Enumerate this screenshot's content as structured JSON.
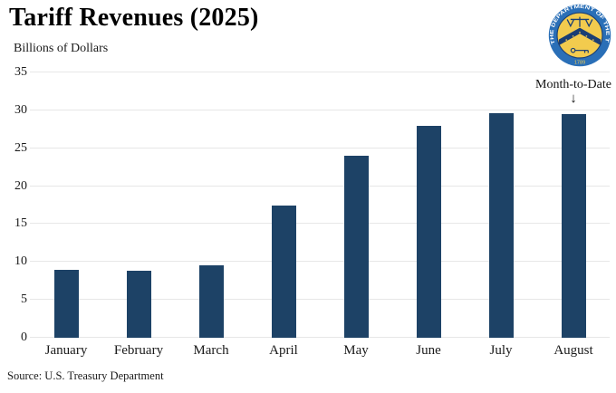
{
  "header": {
    "title": "Tariff Revenues (2025)",
    "subtitle": "Billions of Dollars"
  },
  "logo": {
    "ring_text": "THE DEPARTMENT OF THE TREASURY",
    "year_text": "1789",
    "colors": {
      "ring": "#2a6fb7",
      "disc": "#f2cb4e",
      "emblem": "#1a3e74"
    }
  },
  "chart_data": {
    "type": "bar",
    "title": "Tariff Revenues (2025)",
    "ylabel": "Billions of Dollars",
    "categories": [
      "January",
      "February",
      "March",
      "April",
      "May",
      "June",
      "July",
      "August"
    ],
    "values": [
      9.0,
      8.9,
      9.6,
      17.4,
      24.0,
      28.0,
      29.6,
      29.5
    ],
    "ylim": [
      0,
      35
    ],
    "yticks": [
      0,
      5,
      10,
      15,
      20,
      25,
      30,
      35
    ],
    "grid": true,
    "bar_color": "#1d4266",
    "gridline_color": "#e7e7e7",
    "annotation": {
      "text": "Month-to-Date",
      "arrow": "↓",
      "target_category": "August"
    }
  },
  "footer": {
    "source": "Source: U.S. Treasury Department"
  }
}
